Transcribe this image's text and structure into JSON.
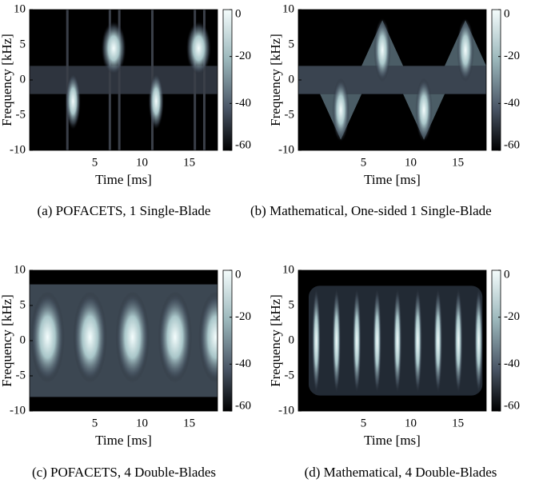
{
  "chart_data": [
    {
      "type": "spectrogram",
      "caption": "(a) POFACETS, 1 Single-Blade",
      "x_label": "Time [ms]",
      "y_label": "Frequency [kHz]",
      "xlim": [
        -1.9,
        18
      ],
      "xticks": [
        5,
        10,
        15
      ],
      "ylim": [
        -10,
        10
      ],
      "yticks": [
        -10,
        -5,
        0,
        5,
        10
      ],
      "clim": [
        -60,
        0
      ],
      "cticks": [
        0,
        -20,
        -40,
        -60
      ]
    },
    {
      "type": "spectrogram",
      "caption": "(b) Mathematical, One-sided 1 Single-Blade",
      "x_label": "Time [ms]",
      "y_label": "Frequency [kHz]",
      "xlim": [
        -1.9,
        18
      ],
      "xticks": [
        5,
        10,
        15
      ],
      "ylim": [
        -10,
        10
      ],
      "yticks": [
        -10,
        -5,
        0,
        5,
        10
      ],
      "clim": [
        -60,
        0
      ],
      "cticks": [
        0,
        -20,
        -40,
        -60
      ]
    },
    {
      "type": "spectrogram",
      "caption": "(c) POFACETS, 4 Double-Blades",
      "x_label": "Time [ms]",
      "y_label": "Frequency [kHz]",
      "xlim": [
        -1.9,
        18
      ],
      "xticks": [
        5,
        10,
        15
      ],
      "ylim": [
        -10,
        10
      ],
      "yticks": [
        -10,
        -5,
        0,
        5,
        10
      ],
      "clim": [
        -60,
        0
      ],
      "cticks": [
        0,
        -20,
        -40,
        -60
      ]
    },
    {
      "type": "spectrogram",
      "caption": "(d) Mathematical, 4 Double-Blades",
      "x_label": "Time [ms]",
      "y_label": "Frequency [kHz]",
      "xlim": [
        -1.9,
        18
      ],
      "xticks": [
        5,
        10,
        15
      ],
      "ylim": [
        -10,
        10
      ],
      "yticks": [
        -10,
        -5,
        0,
        5,
        10
      ],
      "clim": [
        -60,
        0
      ],
      "cticks": [
        0,
        -20,
        -40,
        -60
      ]
    }
  ]
}
